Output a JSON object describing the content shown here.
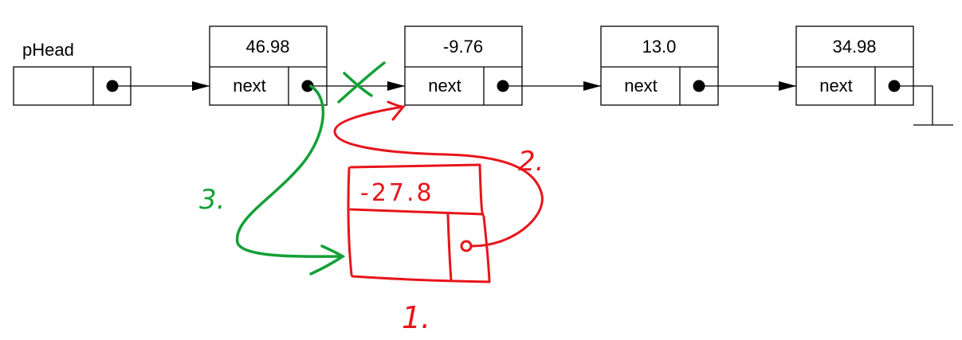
{
  "head_pointer": {
    "label": "pHead"
  },
  "nodes": [
    {
      "value": "46.98",
      "next_label": "next"
    },
    {
      "value": "-9.76",
      "next_label": "next"
    },
    {
      "value": "13.0",
      "next_label": "next"
    },
    {
      "value": "34.98",
      "next_label": "next"
    }
  ],
  "new_node": {
    "value": "-27.8"
  },
  "steps": {
    "step1": "1.",
    "step2": "2.",
    "step3": "3."
  },
  "colors": {
    "line": "#000000",
    "step_red": "#e8141b",
    "step_green": "#13a037"
  }
}
